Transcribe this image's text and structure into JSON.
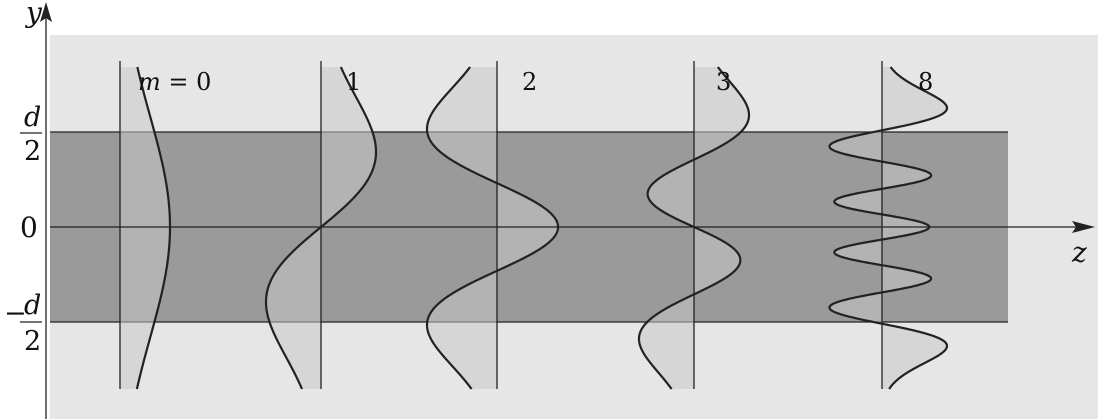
{
  "axes": {
    "y_label": "y",
    "z_label": "z",
    "tick_top": {
      "numerator": "d",
      "denominator": "2"
    },
    "tick_zero": "0",
    "tick_bottom": {
      "sign": "−",
      "numerator": "d",
      "denominator": "2"
    }
  },
  "modes": [
    {
      "label_prefix": "m",
      "label_eq": " = ",
      "label": "0",
      "order": 0
    },
    {
      "label_prefix": "",
      "label_eq": "",
      "label": "1",
      "order": 1
    },
    {
      "label_prefix": "",
      "label_eq": "",
      "label": "2",
      "order": 2
    },
    {
      "label_prefix": "",
      "label_eq": "",
      "label": "3",
      "order": 3
    },
    {
      "label_prefix": "",
      "label_eq": "",
      "label": "8",
      "order": 8
    }
  ],
  "colors": {
    "background_cladding": "#e6e6e6",
    "core": "#9a9a9a",
    "mode_fill": "#c8c8c8",
    "line": "#222222"
  }
}
